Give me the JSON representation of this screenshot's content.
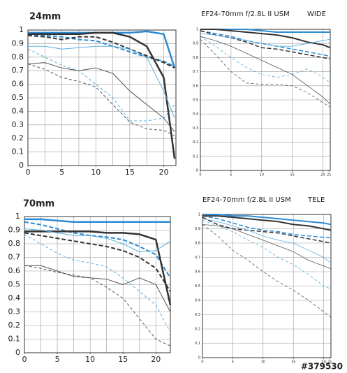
{
  "chart_data": [
    {
      "type": "line",
      "title": "24mm",
      "xlim": [
        0,
        21.8
      ],
      "ylim": [
        0,
        1
      ],
      "xticks": [
        0,
        5,
        10,
        15,
        20
      ],
      "xgrid": [
        0,
        2.5,
        5,
        7.5,
        10,
        12.5,
        15,
        17.5,
        20
      ],
      "yticks": [
        0,
        0.1,
        0.2,
        0.3,
        0.4,
        0.5,
        0.6,
        0.7,
        0.8,
        0.9,
        1
      ],
      "x": [
        0,
        2.5,
        5,
        7.5,
        10,
        12.5,
        15,
        17.5,
        20,
        21.6
      ],
      "series": [
        {
          "color": "#2a8bd4",
          "width": 2.5,
          "dashed": false,
          "values": [
            0.98,
            0.98,
            0.98,
            0.98,
            0.98,
            0.98,
            0.98,
            0.99,
            0.97,
            0.72
          ]
        },
        {
          "color": "#2a8bd4",
          "width": 2,
          "dashed": true,
          "values": [
            0.97,
            0.96,
            0.95,
            0.93,
            0.92,
            0.88,
            0.84,
            0.8,
            0.77,
            0.73
          ]
        },
        {
          "color": "#333333",
          "width": 2.5,
          "dashed": false,
          "values": [
            0.97,
            0.97,
            0.97,
            0.97,
            0.98,
            0.98,
            0.95,
            0.88,
            0.65,
            0.05
          ]
        },
        {
          "color": "#333333",
          "width": 2,
          "dashed": true,
          "values": [
            0.96,
            0.95,
            0.93,
            0.95,
            0.95,
            0.91,
            0.86,
            0.81,
            0.76,
            0.72
          ]
        },
        {
          "color": "#5aaee0",
          "width": 1,
          "dashed": false,
          "values": [
            0.88,
            0.88,
            0.86,
            0.87,
            0.88,
            0.88,
            0.86,
            0.8,
            0.55,
            0.35
          ]
        },
        {
          "color": "#5aaee0",
          "width": 1,
          "dashed": true,
          "values": [
            0.86,
            0.8,
            0.74,
            0.7,
            0.6,
            0.5,
            0.33,
            0.33,
            0.35,
            0.45
          ]
        },
        {
          "color": "#555555",
          "width": 1,
          "dashed": false,
          "values": [
            0.75,
            0.76,
            0.72,
            0.7,
            0.72,
            0.68,
            0.55,
            0.45,
            0.35,
            0.25
          ]
        },
        {
          "color": "#555555",
          "width": 1,
          "dashed": true,
          "values": [
            0.75,
            0.71,
            0.65,
            0.62,
            0.58,
            0.45,
            0.32,
            0.27,
            0.26,
            0.22
          ]
        }
      ]
    },
    {
      "type": "line",
      "title": "EF24-70mm f/2.8L II USM",
      "label": "WIDE",
      "xlim": [
        0,
        21.2
      ],
      "ylim": [
        0,
        1
      ],
      "xticks": [
        0,
        5,
        10,
        15,
        20,
        21
      ],
      "xgrid": [
        5,
        10,
        15,
        20
      ],
      "yticks": [
        0,
        0.1,
        0.2,
        0.3,
        0.4,
        0.5,
        0.6,
        0.7,
        0.8,
        0.9,
        1
      ],
      "x": [
        0,
        2.5,
        5,
        7.5,
        10,
        12.5,
        15,
        17.5,
        20,
        21.2
      ],
      "series": [
        {
          "color": "#2a8bd4",
          "width": 2,
          "dashed": false,
          "values": [
            1,
            1,
            1,
            1,
            0.99,
            0.98,
            0.98,
            0.98,
            0.98,
            0.98
          ]
        },
        {
          "color": "#2a8bd4",
          "width": 1.5,
          "dashed": true,
          "values": [
            0.99,
            0.97,
            0.95,
            0.92,
            0.9,
            0.88,
            0.86,
            0.84,
            0.82,
            0.81
          ]
        },
        {
          "color": "#333333",
          "width": 2,
          "dashed": false,
          "values": [
            1,
            1,
            0.99,
            0.98,
            0.97,
            0.96,
            0.94,
            0.91,
            0.89,
            0.87
          ]
        },
        {
          "color": "#333333",
          "width": 1.5,
          "dashed": true,
          "values": [
            0.99,
            0.96,
            0.94,
            0.91,
            0.87,
            0.86,
            0.84,
            0.82,
            0.8,
            0.79
          ]
        },
        {
          "color": "#5aaee0",
          "width": 0.8,
          "dashed": false,
          "values": [
            0.97,
            0.96,
            0.94,
            0.92,
            0.9,
            0.88,
            0.88,
            0.9,
            0.92,
            0.93
          ]
        },
        {
          "color": "#5aaee0",
          "width": 0.8,
          "dashed": true,
          "values": [
            0.95,
            0.88,
            0.8,
            0.73,
            0.68,
            0.66,
            0.68,
            0.72,
            0.66,
            0.62
          ]
        },
        {
          "color": "#555555",
          "width": 0.8,
          "dashed": false,
          "values": [
            0.95,
            0.92,
            0.88,
            0.83,
            0.78,
            0.73,
            0.68,
            0.6,
            0.52,
            0.47
          ]
        },
        {
          "color": "#555555",
          "width": 0.8,
          "dashed": true,
          "values": [
            0.93,
            0.82,
            0.7,
            0.62,
            0.61,
            0.61,
            0.6,
            0.55,
            0.48,
            0.45
          ]
        }
      ]
    },
    {
      "type": "line",
      "title": "70mm",
      "xlim": [
        0,
        22.2
      ],
      "ylim": [
        0,
        1
      ],
      "xticks": [
        0,
        5,
        10,
        15,
        20
      ],
      "xgrid": [
        0,
        2.5,
        5,
        7.5,
        10,
        12.5,
        15,
        17.5,
        20
      ],
      "yticks": [
        0,
        0.1,
        0.2,
        0.3,
        0.4,
        0.5,
        0.6,
        0.7,
        0.8,
        0.9,
        1
      ],
      "x": [
        0,
        2.5,
        5,
        7.5,
        10,
        12.5,
        15,
        17.5,
        20,
        22.2
      ],
      "series": [
        {
          "color": "#2a8bd4",
          "width": 2.5,
          "dashed": false,
          "values": [
            0.98,
            0.98,
            0.97,
            0.96,
            0.96,
            0.96,
            0.96,
            0.96,
            0.96,
            0.96
          ]
        },
        {
          "color": "#2a8bd4",
          "width": 2,
          "dashed": true,
          "values": [
            0.96,
            0.94,
            0.91,
            0.88,
            0.86,
            0.85,
            0.83,
            0.78,
            0.72,
            0.55
          ]
        },
        {
          "color": "#333333",
          "width": 2.5,
          "dashed": false,
          "values": [
            0.89,
            0.89,
            0.89,
            0.89,
            0.89,
            0.88,
            0.88,
            0.87,
            0.83,
            0.35
          ]
        },
        {
          "color": "#333333",
          "width": 2,
          "dashed": true,
          "values": [
            0.88,
            0.86,
            0.84,
            0.82,
            0.8,
            0.78,
            0.75,
            0.7,
            0.62,
            0.45
          ]
        },
        {
          "color": "#5aaee0",
          "width": 1,
          "dashed": false,
          "values": [
            0.91,
            0.9,
            0.88,
            0.86,
            0.86,
            0.84,
            0.8,
            0.74,
            0.75,
            0.82
          ]
        },
        {
          "color": "#5aaee0",
          "width": 1,
          "dashed": true,
          "values": [
            0.87,
            0.8,
            0.73,
            0.68,
            0.66,
            0.63,
            0.55,
            0.45,
            0.35,
            0.15
          ]
        },
        {
          "color": "#555555",
          "width": 1,
          "dashed": false,
          "values": [
            0.64,
            0.64,
            0.6,
            0.56,
            0.55,
            0.54,
            0.5,
            0.55,
            0.5,
            0.3
          ]
        },
        {
          "color": "#555555",
          "width": 1,
          "dashed": true,
          "values": [
            0.64,
            0.62,
            0.59,
            0.57,
            0.55,
            0.48,
            0.4,
            0.25,
            0.1,
            0.05
          ]
        }
      ]
    },
    {
      "type": "line",
      "title": "EF24-70mm f/2.8L II USM",
      "label": "TELE",
      "xlim": [
        0,
        21.2
      ],
      "ylim": [
        0,
        1
      ],
      "xticks": [
        0,
        5,
        10,
        15,
        20,
        21
      ],
      "xgrid": [
        5,
        10,
        15,
        20
      ],
      "yticks": [
        0,
        0.1,
        0.2,
        0.3,
        0.4,
        0.5,
        0.6,
        0.7,
        0.8,
        0.9,
        1
      ],
      "x": [
        0,
        2.5,
        5,
        7.5,
        10,
        12.5,
        15,
        17.5,
        20,
        21.2
      ],
      "series": [
        {
          "color": "#2a8bd4",
          "width": 2,
          "dashed": false,
          "values": [
            1,
            1,
            0.99,
            0.99,
            0.98,
            0.97,
            0.96,
            0.95,
            0.94,
            0.93
          ]
        },
        {
          "color": "#2a8bd4",
          "width": 1.5,
          "dashed": true,
          "values": [
            0.99,
            0.97,
            0.94,
            0.91,
            0.89,
            0.88,
            0.86,
            0.85,
            0.84,
            0.84
          ]
        },
        {
          "color": "#333333",
          "width": 2,
          "dashed": false,
          "values": [
            0.99,
            0.99,
            0.98,
            0.97,
            0.96,
            0.95,
            0.93,
            0.92,
            0.9,
            0.89
          ]
        },
        {
          "color": "#333333",
          "width": 1.5,
          "dashed": true,
          "values": [
            0.98,
            0.93,
            0.9,
            0.89,
            0.88,
            0.87,
            0.85,
            0.83,
            0.81,
            0.8
          ]
        },
        {
          "color": "#5aaee0",
          "width": 0.8,
          "dashed": false,
          "values": [
            0.97,
            0.95,
            0.92,
            0.89,
            0.85,
            0.82,
            0.8,
            0.75,
            0.7,
            0.66
          ]
        },
        {
          "color": "#5aaee0",
          "width": 0.8,
          "dashed": true,
          "values": [
            0.96,
            0.92,
            0.88,
            0.82,
            0.77,
            0.7,
            0.65,
            0.58,
            0.5,
            0.48
          ]
        },
        {
          "color": "#555555",
          "width": 0.8,
          "dashed": false,
          "values": [
            0.93,
            0.92,
            0.9,
            0.86,
            0.82,
            0.78,
            0.74,
            0.68,
            0.64,
            0.62
          ]
        },
        {
          "color": "#555555",
          "width": 0.8,
          "dashed": true,
          "values": [
            0.93,
            0.85,
            0.75,
            0.68,
            0.6,
            0.53,
            0.47,
            0.4,
            0.32,
            0.28
          ]
        }
      ]
    }
  ],
  "watermark": "#379530"
}
